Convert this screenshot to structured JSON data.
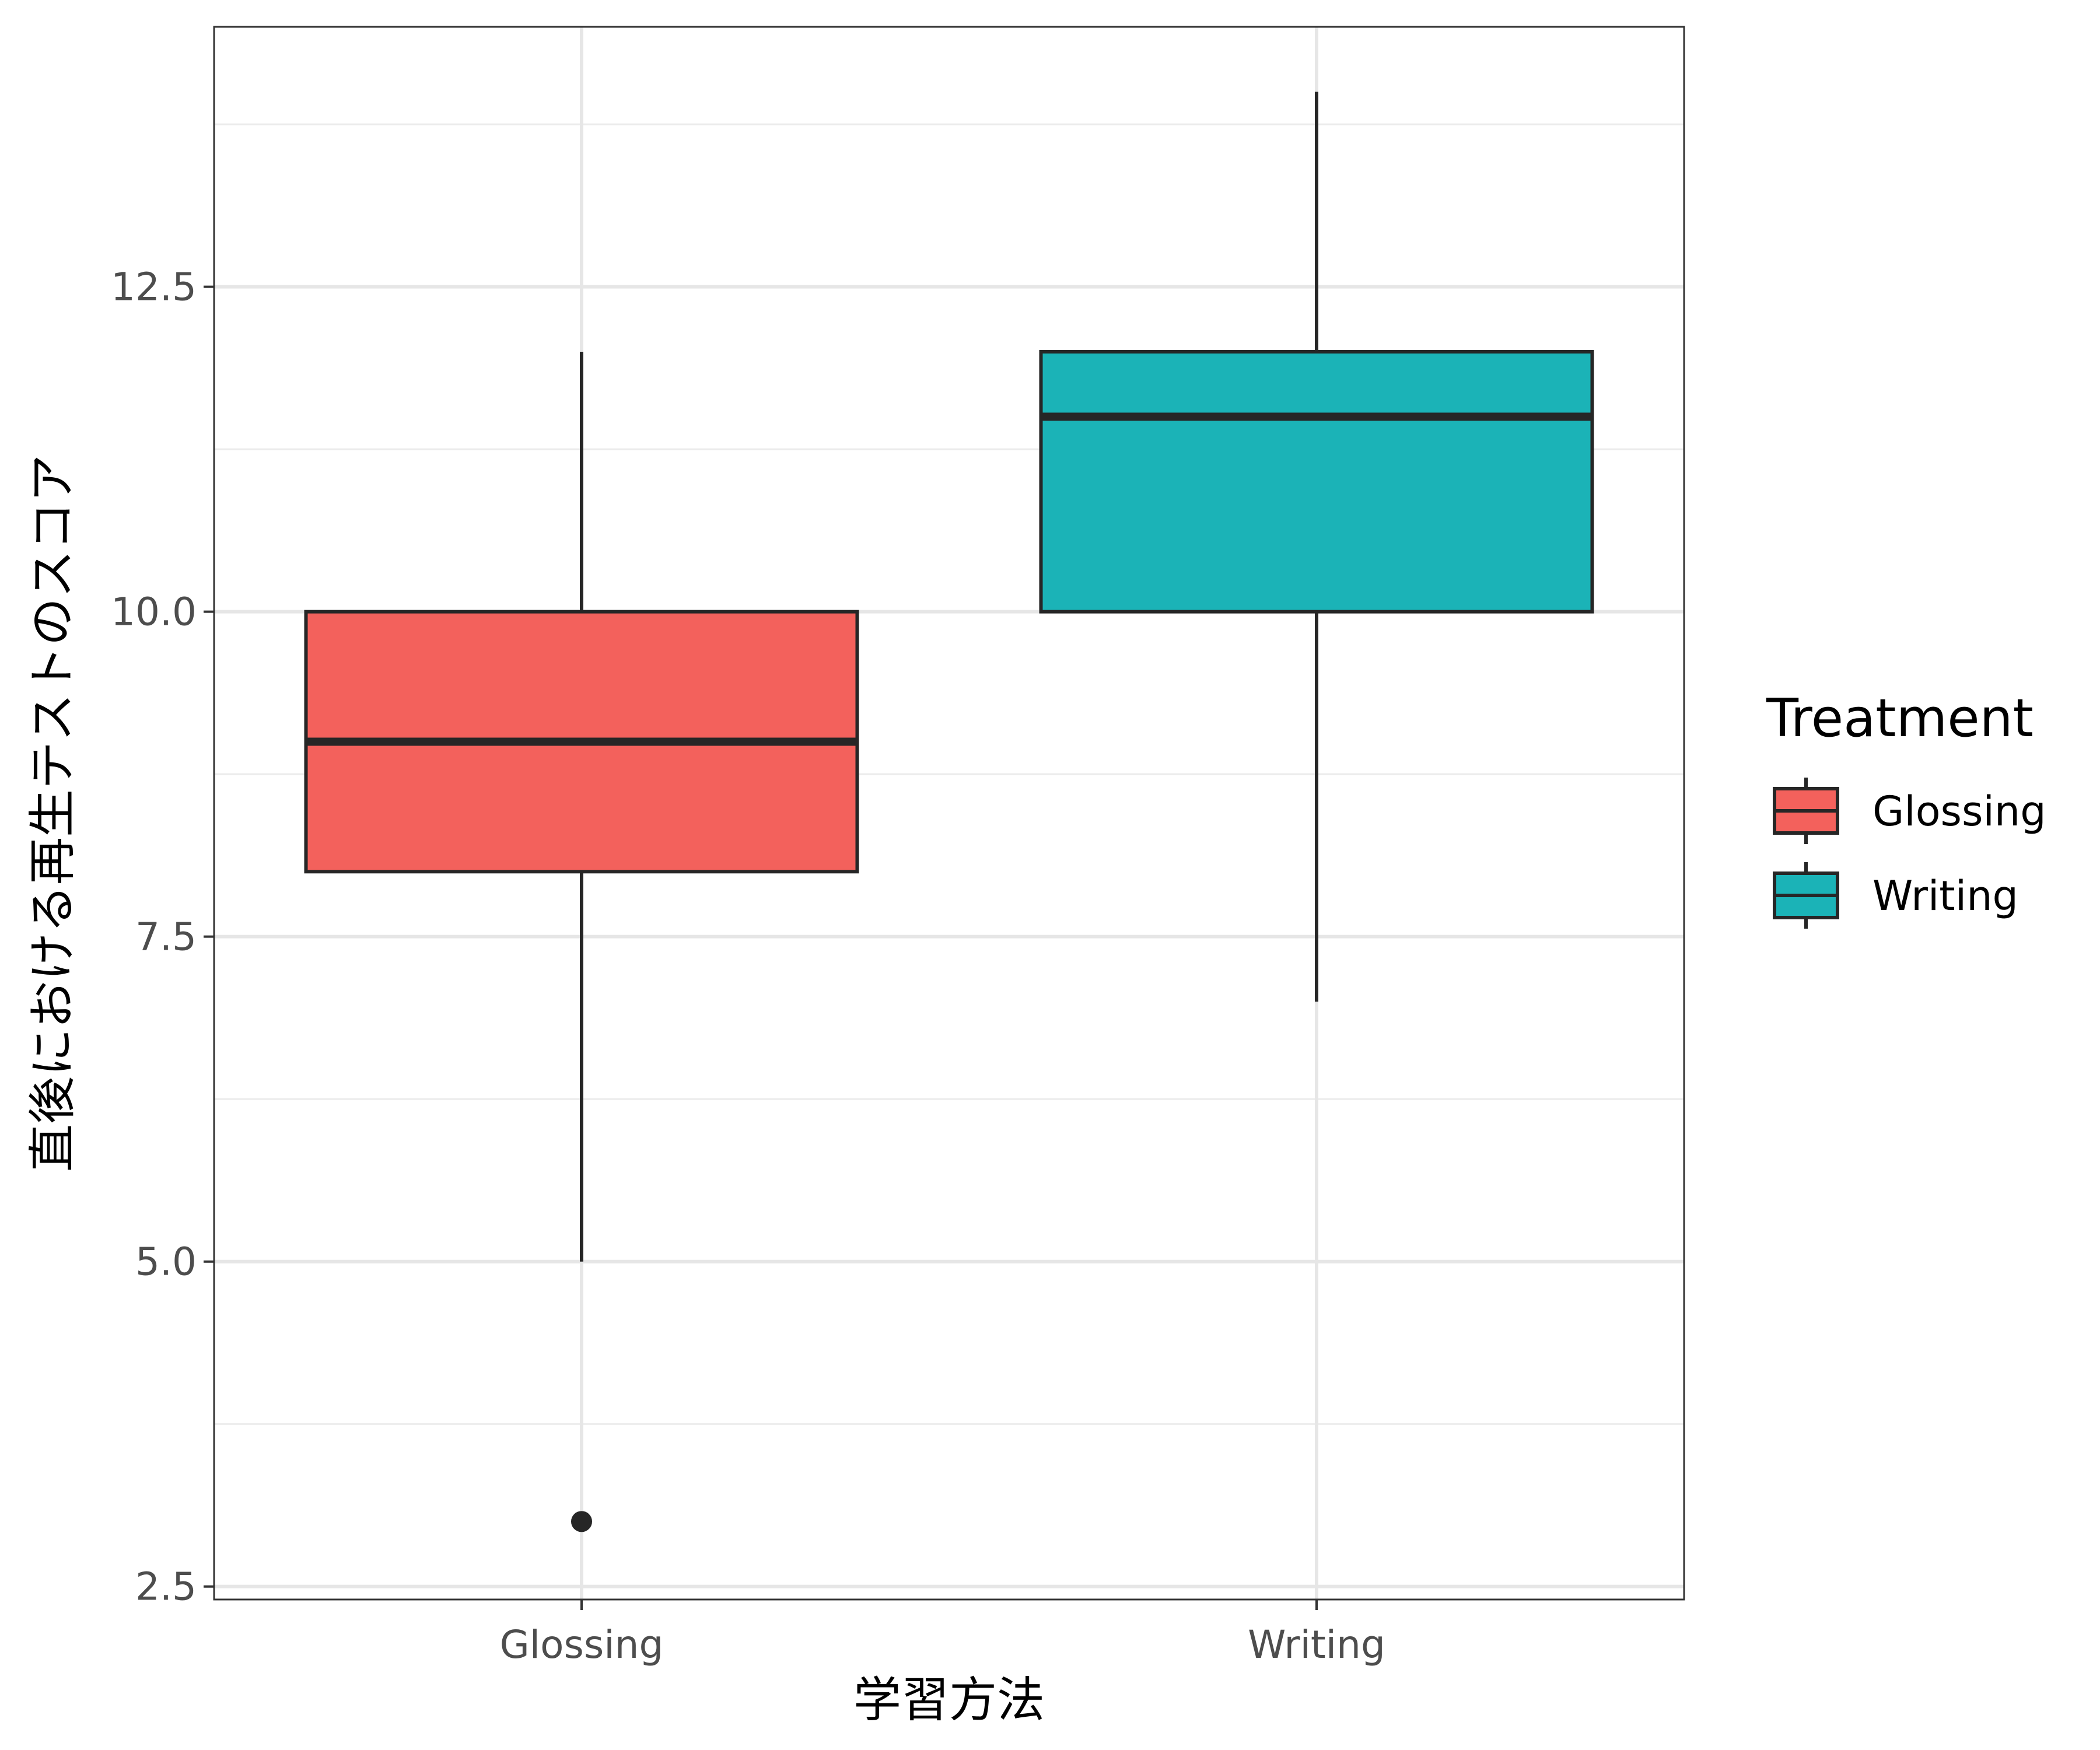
{
  "chart_data": {
    "type": "boxplot",
    "xlabel": "学習方法",
    "ylabel": "直後における再生テストのスコア",
    "categories": [
      "Glossing",
      "Writing"
    ],
    "ylim": [
      2.4,
      14.5
    ],
    "yticks": [
      2.5,
      5.0,
      7.5,
      10.0,
      12.5
    ],
    "ytick_labels": [
      "2.5",
      "5.0",
      "7.5",
      "10.0",
      "12.5"
    ],
    "grid": true,
    "boxes": [
      {
        "category": "Glossing",
        "whisker_low": 5,
        "q1": 8,
        "median": 9,
        "q3": 10,
        "whisker_high": 12,
        "outliers": [
          3
        ],
        "color": "#F3615C"
      },
      {
        "category": "Writing",
        "whisker_low": 7,
        "q1": 10,
        "median": 11.5,
        "q3": 12,
        "whisker_high": 14,
        "outliers": [],
        "color": "#1BB3B7"
      }
    ],
    "legend": {
      "title": "Treatment",
      "position": "right",
      "entries": [
        {
          "label": "Glossing",
          "color": "#F3615C"
        },
        {
          "label": "Writing",
          "color": "#1BB3B7"
        }
      ]
    }
  }
}
